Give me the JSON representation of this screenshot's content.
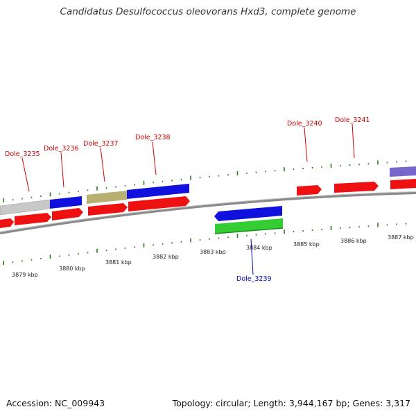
{
  "title": "Candidatus Desulfococcus oleovorans Hxd3, complete genome",
  "accession": "Accession: NC_009943",
  "topology": "Topology: circular; Length: 3,944,167 bp; Genes: 3,317",
  "colors": {
    "backbone": "#8a8a8a",
    "tick": "#2e7d1e",
    "label_forward": "#cc0000",
    "label_reverse": "#0000bb",
    "gene_red": "#ee1111",
    "gene_blue": "#1111dd",
    "gene_green": "#33cc33",
    "gene_grey": "#c8c8c8",
    "gene_olive": "#b8b070",
    "gene_purple": "#7766cc"
  },
  "scale_labels": [
    "3879 kbp",
    "3880 kbp",
    "3881 kbp",
    "3882 kbp",
    "3883 kbp",
    "3884 kbp",
    "3885 kbp",
    "3886 kbp",
    "3887 kbp"
  ],
  "gene_labels": {
    "forward": [
      "Dole_3235",
      "Dole_3236",
      "Dole_3237",
      "Dole_3238",
      "Dole_3240",
      "Dole_3241"
    ],
    "reverse": [
      "Dole_3239"
    ]
  }
}
